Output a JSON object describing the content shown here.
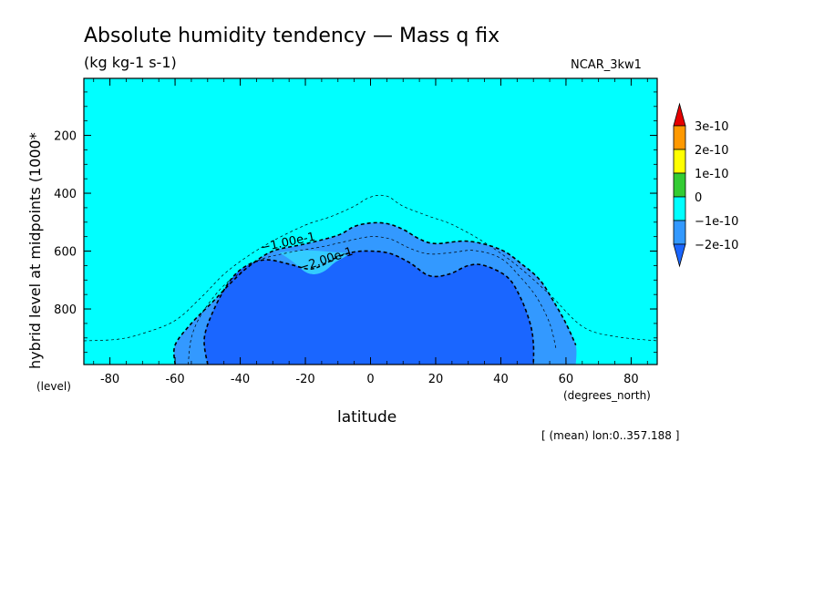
{
  "chart_data": {
    "type": "contour",
    "title": "Absolute humidity tendency — Mass q fix",
    "units": "(kg kg-1 s-1)",
    "tag": "NCAR_3kw1",
    "xlabel": "latitude",
    "xunits": "(degrees_north)",
    "ylabel": "hybrid level at midpoints (1000*",
    "yunits": "(level)",
    "footer": "[ (mean) lon:0..357.188 ]",
    "xlim": [
      -88,
      88
    ],
    "ylim": [
      992,
      3
    ],
    "x_ticks": [
      "-80",
      "-60",
      "-40",
      "-20",
      "0",
      "20",
      "40",
      "60",
      "80"
    ],
    "x_tick_values": [
      -80,
      -60,
      -40,
      -20,
      0,
      20,
      40,
      60,
      80
    ],
    "y_ticks": [
      "200",
      "400",
      "600",
      "800"
    ],
    "y_tick_values": [
      200,
      400,
      600,
      800
    ],
    "colorbar": {
      "labels": [
        "3e-10",
        "2e-10",
        "1e-10",
        "0",
        "−1e-10",
        "−2e-10"
      ],
      "colors": [
        "#e60000",
        "#ff9900",
        "#ffff00",
        "#33cc33",
        "#00ffff",
        "#3399ff",
        "#1a66ff"
      ]
    },
    "contour_labels": [
      "−1.00e-1",
      "−2.00e-1"
    ],
    "regions": [
      {
        "level": "-2e-10 to -1e-10",
        "color": "#3399ff",
        "boundary": [
          [
            -60,
            992
          ],
          [
            -60,
            925
          ],
          [
            -55,
            850
          ],
          [
            -48,
            770
          ],
          [
            -42,
            700
          ],
          [
            -37,
            650
          ],
          [
            -30,
            600
          ],
          [
            -20,
            575
          ],
          [
            -10,
            545
          ],
          [
            -5,
            515
          ],
          [
            0,
            503
          ],
          [
            5,
            505
          ],
          [
            10,
            525
          ],
          [
            15,
            558
          ],
          [
            20,
            574
          ],
          [
            30,
            566
          ],
          [
            40,
            595
          ],
          [
            47,
            650
          ],
          [
            52,
            700
          ],
          [
            56,
            770
          ],
          [
            60,
            850
          ],
          [
            63,
            925
          ],
          [
            63,
            992
          ]
        ]
      },
      {
        "level": "< -2e-10",
        "color": "#1a66ff",
        "boundary": [
          [
            -50,
            992
          ],
          [
            -51,
            900
          ],
          [
            -48,
            800
          ],
          [
            -43,
            700
          ],
          [
            -38,
            650
          ],
          [
            -32,
            630
          ],
          [
            -25,
            645
          ],
          [
            -19,
            662
          ],
          [
            -15,
            650
          ],
          [
            -10,
            620
          ],
          [
            -5,
            603
          ],
          [
            0,
            600
          ],
          [
            6,
            608
          ],
          [
            12,
            640
          ],
          [
            18,
            685
          ],
          [
            24,
            680
          ],
          [
            30,
            650
          ],
          [
            35,
            650
          ],
          [
            42,
            690
          ],
          [
            46,
            760
          ],
          [
            49,
            850
          ],
          [
            50,
            920
          ],
          [
            50,
            992
          ]
        ]
      },
      {
        "level": "light patch",
        "color": "#33ccff",
        "boundary": [
          [
            -28,
            605
          ],
          [
            -24,
            635
          ],
          [
            -20,
            672
          ],
          [
            -17,
            680
          ],
          [
            -14,
            668
          ],
          [
            -11,
            640
          ],
          [
            -7,
            610
          ],
          [
            -12,
            603
          ],
          [
            -18,
            598
          ],
          [
            -24,
            600
          ]
        ]
      }
    ],
    "contours": [
      {
        "level": "-1e-10 outer",
        "weight": "thin",
        "points": [
          [
            -88,
            910
          ],
          [
            -78,
            905
          ],
          [
            -70,
            885
          ],
          [
            -60,
            840
          ],
          [
            -52,
            760
          ],
          [
            -45,
            680
          ],
          [
            -38,
            620
          ],
          [
            -30,
            565
          ],
          [
            -20,
            510
          ],
          [
            -12,
            480
          ],
          [
            -5,
            445
          ],
          [
            0,
            413
          ],
          [
            5,
            410
          ],
          [
            10,
            445
          ],
          [
            18,
            480
          ],
          [
            25,
            508
          ],
          [
            35,
            570
          ],
          [
            45,
            650
          ],
          [
            55,
            750
          ],
          [
            65,
            860
          ],
          [
            75,
            895
          ],
          [
            88,
            910
          ]
        ]
      },
      {
        "level": "-1.00e-1",
        "weight": "bold",
        "points": [
          [
            -60,
            992
          ],
          [
            -60,
            925
          ],
          [
            -55,
            850
          ],
          [
            -48,
            770
          ],
          [
            -42,
            700
          ],
          [
            -37,
            650
          ],
          [
            -30,
            600
          ],
          [
            -20,
            575
          ],
          [
            -10,
            545
          ],
          [
            -5,
            515
          ],
          [
            0,
            503
          ],
          [
            5,
            505
          ],
          [
            10,
            525
          ],
          [
            15,
            558
          ],
          [
            20,
            574
          ],
          [
            30,
            566
          ],
          [
            40,
            595
          ],
          [
            47,
            650
          ],
          [
            52,
            700
          ],
          [
            56,
            770
          ],
          [
            60,
            850
          ],
          [
            63,
            925
          ]
        ]
      },
      {
        "level": "-1.5e-1",
        "weight": "thin",
        "points": [
          [
            -56,
            992
          ],
          [
            -55,
            900
          ],
          [
            -52,
            820
          ],
          [
            -46,
            730
          ],
          [
            -40,
            675
          ],
          [
            -34,
            630
          ],
          [
            -25,
            605
          ],
          [
            -15,
            585
          ],
          [
            -7,
            565
          ],
          [
            0,
            550
          ],
          [
            6,
            558
          ],
          [
            12,
            590
          ],
          [
            18,
            610
          ],
          [
            25,
            605
          ],
          [
            32,
            598
          ],
          [
            40,
            625
          ],
          [
            46,
            690
          ],
          [
            51,
            760
          ],
          [
            55,
            850
          ],
          [
            57,
            940
          ]
        ]
      },
      {
        "level": "-2.00e-1",
        "weight": "bold",
        "points": [
          [
            -50,
            992
          ],
          [
            -51,
            900
          ],
          [
            -48,
            800
          ],
          [
            -43,
            700
          ],
          [
            -38,
            650
          ],
          [
            -32,
            630
          ],
          [
            -25,
            645
          ],
          [
            -19,
            662
          ],
          [
            -15,
            650
          ],
          [
            -10,
            620
          ],
          [
            -5,
            603
          ],
          [
            0,
            600
          ],
          [
            6,
            608
          ],
          [
            12,
            640
          ],
          [
            18,
            685
          ],
          [
            24,
            680
          ],
          [
            30,
            650
          ],
          [
            35,
            650
          ],
          [
            42,
            690
          ],
          [
            46,
            760
          ],
          [
            49,
            850
          ],
          [
            50,
            920
          ],
          [
            50,
            992
          ]
        ]
      }
    ],
    "background_color": "#00ffff"
  }
}
